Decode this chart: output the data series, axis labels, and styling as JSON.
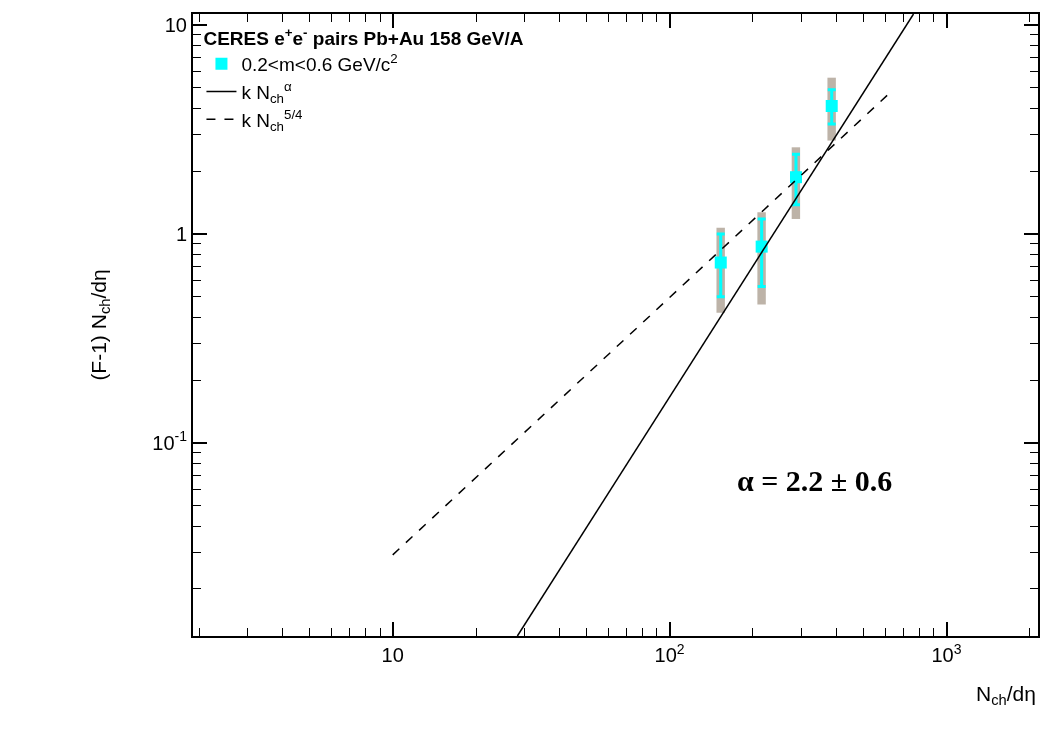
{
  "chart_data": {
    "type": "scatter",
    "legend_title": "CERES e$^{+}$e$^{-}$ pairs Pb+Au 158 GeV/A",
    "xlabel": "N$_{ch}$/dη",
    "ylabel": "(F-1) N$_{ch}$/dη",
    "annotations": [
      "α = 2.2 ± 0.6"
    ],
    "log": "xy",
    "legend": "top left",
    "xlim": [
      1.9,
      2140
    ],
    "ylim": [
      0.0119,
      11.3
    ],
    "xticks": [
      {
        "value": 2,
        "label": null
      },
      {
        "value": 3,
        "label": null
      },
      {
        "value": 4,
        "label": null
      },
      {
        "value": 5,
        "label": null
      },
      {
        "value": 6,
        "label": null
      },
      {
        "value": 7,
        "label": null
      },
      {
        "value": 8,
        "label": null
      },
      {
        "value": 9,
        "label": null
      },
      10,
      {
        "value": 20,
        "label": null
      },
      {
        "value": 30,
        "label": null
      },
      {
        "value": 40,
        "label": null
      },
      {
        "value": 50,
        "label": null
      },
      {
        "value": 60,
        "label": null
      },
      {
        "value": 70,
        "label": null
      },
      {
        "value": 80,
        "label": null
      },
      {
        "value": 90,
        "label": null
      },
      {
        "value": 100,
        "label": "10$^{2}$"
      },
      {
        "value": 200,
        "label": null
      },
      {
        "value": 300,
        "label": null
      },
      {
        "value": 400,
        "label": null
      },
      {
        "value": 500,
        "label": null
      },
      {
        "value": 600,
        "label": null
      },
      {
        "value": 700,
        "label": null
      },
      {
        "value": 800,
        "label": null
      },
      {
        "value": 900,
        "label": null
      },
      {
        "value": 1000,
        "label": "10$^{3}$"
      },
      {
        "value": 2000,
        "label": null
      }
    ],
    "yticks": [
      {
        "value": 0.02,
        "label": null
      },
      {
        "value": 0.03,
        "label": null
      },
      {
        "value": 0.04,
        "label": null
      },
      {
        "value": 0.05,
        "label": null
      },
      {
        "value": 0.06,
        "label": null
      },
      {
        "value": 0.07,
        "label": null
      },
      {
        "value": 0.08,
        "label": null
      },
      {
        "value": 0.09,
        "label": null
      },
      {
        "value": 0.1,
        "label": "10$^{-1}$"
      },
      {
        "value": 0.2,
        "label": null
      },
      {
        "value": 0.3,
        "label": null
      },
      {
        "value": 0.4,
        "label": null
      },
      {
        "value": 0.5,
        "label": null
      },
      {
        "value": 0.6,
        "label": null
      },
      {
        "value": 0.7,
        "label": null
      },
      {
        "value": 0.8,
        "label": null
      },
      {
        "value": 0.9,
        "label": null
      },
      1,
      {
        "value": 2,
        "label": null
      },
      {
        "value": 3,
        "label": null
      },
      {
        "value": 4,
        "label": null
      },
      {
        "value": 5,
        "label": null
      },
      {
        "value": 6,
        "label": null
      },
      {
        "value": 7,
        "label": null
      },
      {
        "value": 8,
        "label": null
      },
      {
        "value": 9,
        "label": null
      },
      10
    ],
    "series": [
      {
        "type": "bar",
        "color": "#bdb3a8",
        "x": [
          153,
          215,
          286,
          385
        ],
        "base": [
          0.42,
          0.46,
          1.18,
          2.8
        ],
        "values": [
          0.65,
          0.81,
          1.42,
          2.8
        ]
      },
      {
        "name": "0.2<m<0.6 GeV/c$^{2}$",
        "color": "#00ffff",
        "marker": "square",
        "x": [
          153,
          215,
          286,
          385
        ],
        "values": [
          0.73,
          0.87,
          1.87,
          4.1
        ],
        "errors": [
          [
            0.5,
            1.0
          ],
          [
            0.56,
            1.18
          ],
          [
            1.38,
            2.41
          ],
          [
            3.36,
            4.9
          ]
        ]
      },
      {
        "type": "line",
        "name": "k N$_{ch}$$^{α}$",
        "color": "#000000",
        "line_style": "solid",
        "marker": "none",
        "x": [
          28.2,
          760
        ],
        "values": [
          0.0119,
          11.3
        ]
      },
      {
        "type": "line",
        "name": "k N$_{ch}$$^{5/4}$",
        "color": "#000000",
        "line_style": "dashed",
        "marker": "none",
        "x": [
          10,
          618
        ],
        "values": [
          0.0291,
          4.68
        ]
      }
    ]
  }
}
